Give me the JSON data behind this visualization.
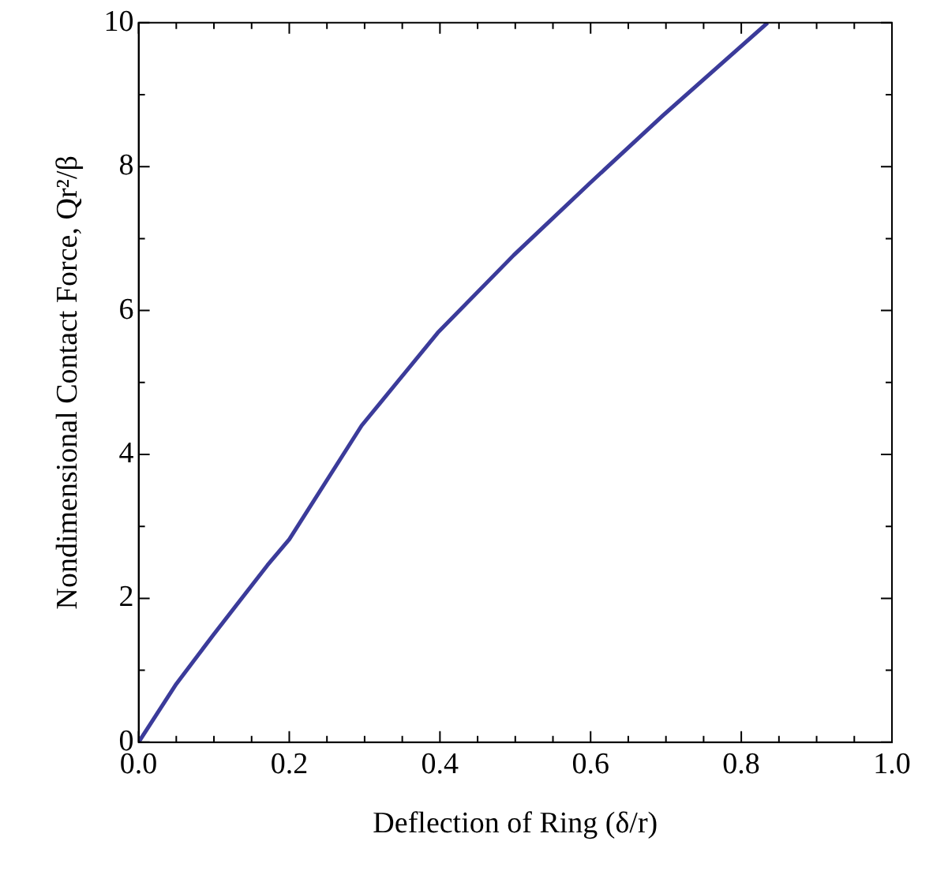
{
  "chart_data": {
    "type": "line",
    "xlabel": "Deflection of Ring (δ/r)",
    "ylabel": "Nondimensional Contact Force, Qr²/β",
    "x": [
      0,
      0.05,
      0.099,
      0.171,
      0.2,
      0.296,
      0.397,
      0.498,
      0.6,
      0.696,
      0.835
    ],
    "series": [
      {
        "color": "#3b3b9a",
        "values": [
          0,
          0.81,
          1.49,
          2.46,
          2.82,
          4.4,
          5.69,
          6.77,
          7.78,
          8.71,
          10
        ]
      }
    ],
    "xlim": [
      0,
      1
    ],
    "ylim": [
      0,
      10
    ],
    "xticks": [
      {
        "value": 0,
        "label": "0.0"
      },
      {
        "value": 0.05,
        "label": null
      },
      {
        "value": 0.1,
        "label": null
      },
      {
        "value": 0.15,
        "label": null
      },
      {
        "value": 0.2,
        "label": "0.2"
      },
      {
        "value": 0.25,
        "label": null
      },
      {
        "value": 0.3,
        "label": null
      },
      {
        "value": 0.35,
        "label": null
      },
      {
        "value": 0.4,
        "label": "0.4"
      },
      {
        "value": 0.45,
        "label": null
      },
      {
        "value": 0.5,
        "label": null
      },
      {
        "value": 0.55,
        "label": null
      },
      {
        "value": 0.6,
        "label": "0.6"
      },
      {
        "value": 0.65,
        "label": null
      },
      {
        "value": 0.7,
        "label": null
      },
      {
        "value": 0.75,
        "label": null
      },
      {
        "value": 0.8,
        "label": "0.8"
      },
      {
        "value": 0.85,
        "label": null
      },
      {
        "value": 0.9,
        "label": null
      },
      {
        "value": 0.95,
        "label": null
      },
      {
        "value": 1,
        "label": "1.0"
      }
    ],
    "yticks": [
      0,
      {
        "value": 1,
        "label": null
      },
      2,
      {
        "value": 3,
        "label": null
      },
      4,
      {
        "value": 5,
        "label": null
      },
      6,
      {
        "value": 7,
        "label": null
      },
      8,
      {
        "value": 9,
        "label": null
      },
      10
    ],
    "grid": false,
    "legend": false,
    "marker": "none",
    "line_style": "solid"
  }
}
